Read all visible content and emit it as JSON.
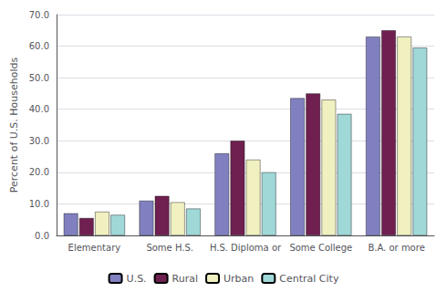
{
  "chart_data": {
    "type": "bar",
    "ylabel": "Percent of U.S. Households",
    "categories": [
      "Elementary",
      "Some H.S.",
      "H.S. Diploma or",
      "Some College",
      "B.A. or more"
    ],
    "series": [
      {
        "name": "U.S.",
        "color": "#8080C0",
        "values": [
          7.0,
          11.0,
          26.0,
          43.5,
          63.0
        ]
      },
      {
        "name": "Rural",
        "color": "#702050",
        "values": [
          5.5,
          12.5,
          30.0,
          45.0,
          65.0
        ]
      },
      {
        "name": "Urban",
        "color": "#F0F0C0",
        "values": [
          7.5,
          10.5,
          24.0,
          43.0,
          63.0
        ]
      },
      {
        "name": "Central City",
        "color": "#A0D8D8",
        "values": [
          6.5,
          8.5,
          20.0,
          38.5,
          59.5
        ]
      }
    ],
    "ylim": [
      0.0,
      70.0
    ],
    "yticks": [
      {
        "value": 0,
        "label": "0.0"
      },
      {
        "value": 10,
        "label": "10.0"
      },
      {
        "value": 20,
        "label": "20.0"
      },
      {
        "value": 30,
        "label": "30.0"
      },
      {
        "value": 40,
        "label": "40.0"
      },
      {
        "value": 50,
        "label": "50.0"
      },
      {
        "value": 60,
        "label": "60.0"
      },
      {
        "value": 70,
        "label": "70.0"
      }
    ],
    "grid": true,
    "legend": "bottom"
  }
}
